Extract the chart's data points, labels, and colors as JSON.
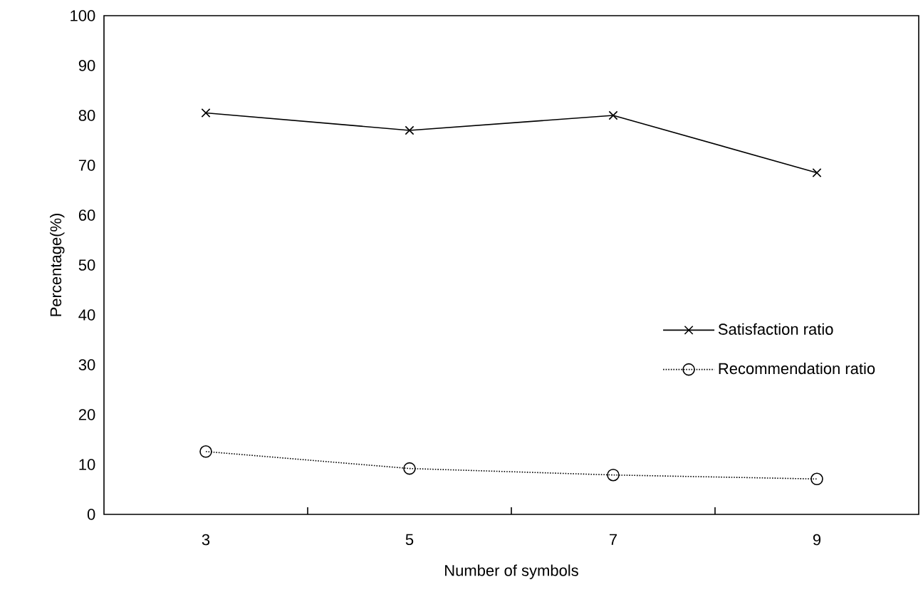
{
  "chart_data": {
    "type": "line",
    "xlabel": "Number of symbols",
    "ylabel": "Percentage(%)",
    "categories": [
      "3",
      "5",
      "7",
      "9"
    ],
    "ylim": [
      0,
      100
    ],
    "yticks": [
      0,
      10,
      20,
      30,
      40,
      50,
      60,
      70,
      80,
      90,
      100
    ],
    "grid": false,
    "legend": "center right",
    "series": [
      {
        "name": "Satisfaction ratio",
        "color": "#000000",
        "values": [
          80.5,
          77,
          80,
          68.5
        ],
        "marker": "cross",
        "line_style": "solid"
      },
      {
        "name": "Recommendation ratio",
        "color": "#000000",
        "values": [
          12.6,
          9.2,
          7.9,
          7.1
        ],
        "marker": "circle",
        "line_style": "dotted"
      }
    ]
  }
}
